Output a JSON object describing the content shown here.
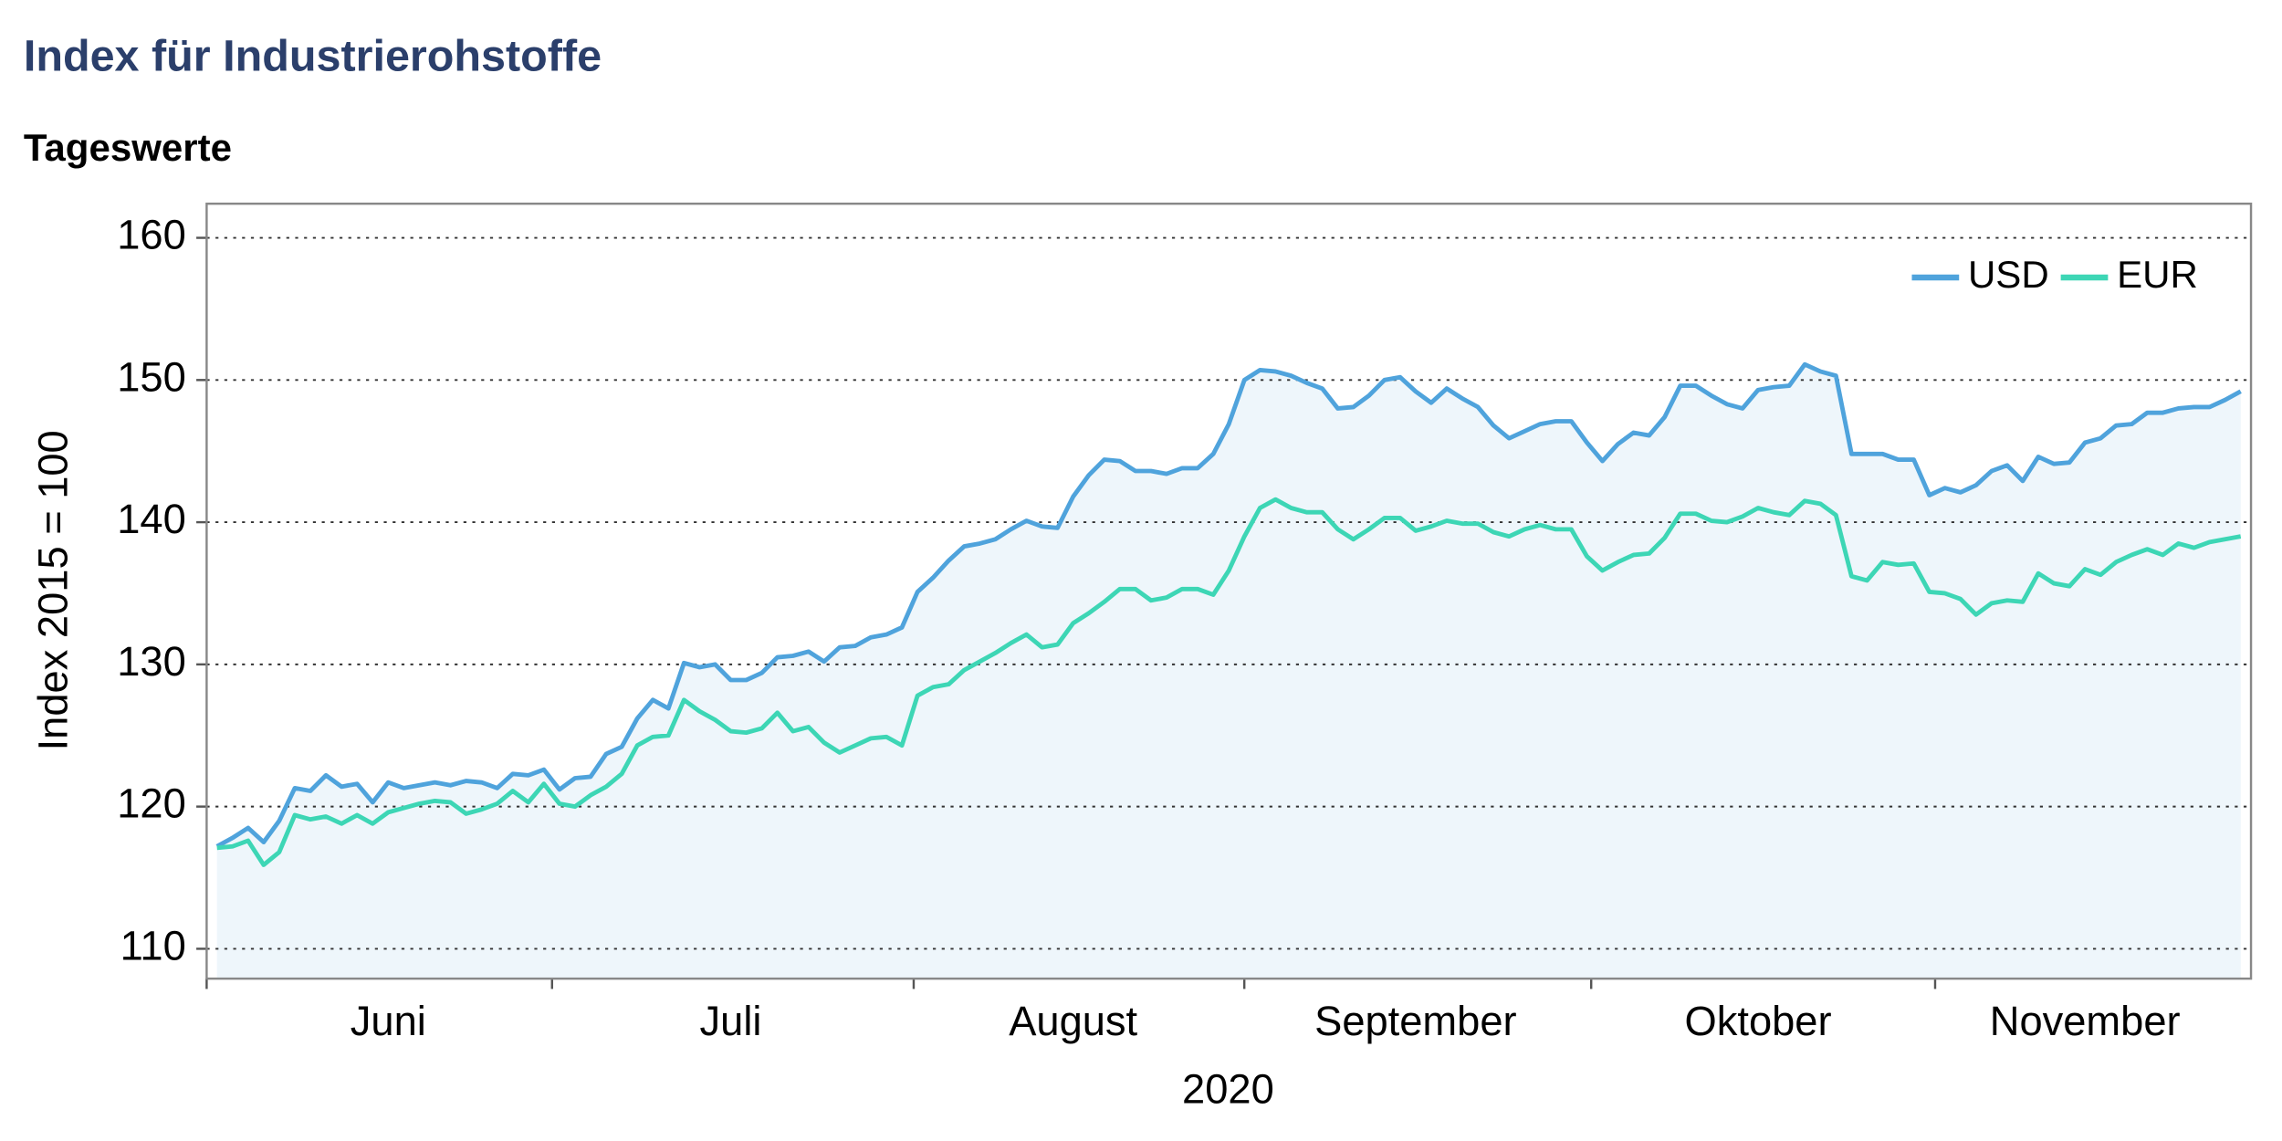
{
  "chart_data": {
    "type": "line",
    "title": "Index für Industrierohstoffe",
    "subtitle": "Tageswerte",
    "y_label": "Index 2015 = 100",
    "x_label": "2020",
    "categories": [
      null,
      null,
      null,
      null,
      null,
      null,
      null,
      null,
      null,
      null,
      null,
      "Juni",
      null,
      null,
      null,
      null,
      null,
      null,
      null,
      null,
      null,
      null,
      null,
      null,
      null,
      null,
      null,
      null,
      null,
      null,
      null,
      null,
      null,
      "Juli",
      null,
      null,
      null,
      null,
      null,
      null,
      null,
      null,
      null,
      null,
      null,
      null,
      null,
      null,
      null,
      null,
      null,
      null,
      null,
      null,
      null,
      "August",
      null,
      null,
      null,
      null,
      null,
      null,
      null,
      null,
      null,
      null,
      null,
      null,
      null,
      null,
      null,
      null,
      null,
      null,
      null,
      null,
      null,
      "September",
      null,
      null,
      null,
      null,
      null,
      null,
      null,
      null,
      null,
      null,
      null,
      null,
      null,
      null,
      null,
      null,
      null,
      null,
      null,
      null,
      null,
      "Oktober",
      null,
      null,
      null,
      null,
      null,
      null,
      null,
      null,
      null,
      null,
      null,
      null,
      null,
      null,
      null,
      null,
      null,
      null,
      null,
      null,
      "November",
      null,
      null,
      null,
      null,
      null,
      null,
      null,
      null,
      null,
      null
    ],
    "series": [
      {
        "name": "USD",
        "color": "#4fa3dc",
        "values": [
          117.2,
          117.8,
          118.5,
          117.5,
          119.0,
          121.3,
          121.1,
          122.2,
          121.4,
          121.6,
          120.3,
          121.7,
          121.3,
          121.5,
          121.7,
          121.5,
          121.8,
          121.7,
          121.3,
          122.3,
          122.2,
          122.6,
          121.2,
          122.0,
          122.1,
          123.7,
          124.2,
          126.2,
          127.5,
          126.9,
          130.1,
          129.8,
          130.0,
          128.9,
          128.9,
          129.4,
          130.5,
          130.6,
          130.9,
          130.2,
          131.2,
          131.3,
          131.9,
          132.1,
          132.6,
          135.1,
          136.1,
          137.3,
          138.3,
          138.5,
          138.8,
          139.5,
          140.1,
          139.7,
          139.6,
          141.8,
          143.3,
          144.4,
          144.3,
          143.6,
          143.6,
          143.4,
          143.8,
          143.8,
          144.8,
          146.9,
          150.0,
          150.7,
          150.6,
          150.3,
          149.8,
          149.4,
          148.0,
          148.1,
          148.9,
          150.0,
          150.2,
          149.2,
          148.4,
          149.4,
          148.7,
          148.1,
          146.8,
          145.9,
          146.4,
          146.9,
          147.1,
          147.1,
          145.6,
          144.3,
          145.5,
          146.3,
          146.1,
          147.4,
          149.6,
          149.6,
          148.9,
          148.3,
          148.0,
          149.3,
          149.5,
          149.6,
          151.1,
          150.6,
          150.3,
          144.8,
          144.8,
          144.8,
          144.4,
          144.4,
          141.9,
          142.4,
          142.1,
          142.6,
          143.6,
          144.0,
          142.9,
          144.6,
          144.1,
          144.2,
          145.6,
          145.9,
          146.8,
          146.9,
          147.7,
          147.7,
          148.0,
          148.1,
          148.1,
          148.6,
          149.2
        ]
      },
      {
        "name": "EUR",
        "color": "#3dd6b5",
        "values": [
          117.1,
          117.2,
          117.6,
          115.9,
          116.8,
          119.4,
          119.1,
          119.3,
          118.8,
          119.4,
          118.8,
          119.6,
          119.9,
          120.2,
          120.4,
          120.3,
          119.5,
          119.8,
          120.2,
          121.1,
          120.3,
          121.6,
          120.2,
          120.0,
          120.8,
          121.4,
          122.3,
          124.3,
          124.9,
          125.0,
          127.5,
          126.7,
          126.1,
          125.3,
          125.2,
          125.5,
          126.6,
          125.3,
          125.6,
          124.5,
          123.8,
          124.3,
          124.8,
          124.9,
          124.3,
          127.8,
          128.4,
          128.6,
          129.6,
          130.2,
          130.8,
          131.5,
          132.1,
          131.2,
          131.4,
          132.9,
          133.6,
          134.4,
          135.3,
          135.3,
          134.5,
          134.7,
          135.3,
          135.3,
          134.9,
          136.6,
          139.0,
          141.0,
          141.6,
          141.0,
          140.7,
          140.7,
          139.5,
          138.8,
          139.5,
          140.3,
          140.3,
          139.4,
          139.7,
          140.1,
          139.9,
          139.9,
          139.3,
          139.0,
          139.5,
          139.8,
          139.5,
          139.5,
          137.6,
          136.6,
          137.2,
          137.7,
          137.8,
          138.9,
          140.6,
          140.6,
          140.1,
          140.0,
          140.4,
          141.0,
          140.7,
          140.5,
          141.5,
          141.3,
          140.5,
          136.2,
          135.9,
          137.2,
          137.0,
          137.1,
          135.1,
          135.0,
          134.6,
          133.5,
          134.3,
          134.5,
          134.4,
          136.4,
          135.7,
          135.5,
          136.7,
          136.3,
          137.2,
          137.7,
          138.1,
          137.7,
          138.5,
          138.2,
          138.6,
          138.8,
          139.0
        ]
      }
    ],
    "area_fill": "#eef6fb",
    "ylim": [
      107.9,
      162.4
    ],
    "yticks": [
      110,
      120,
      130,
      140,
      150,
      160
    ],
    "grid": true,
    "legend": "top-right"
  }
}
